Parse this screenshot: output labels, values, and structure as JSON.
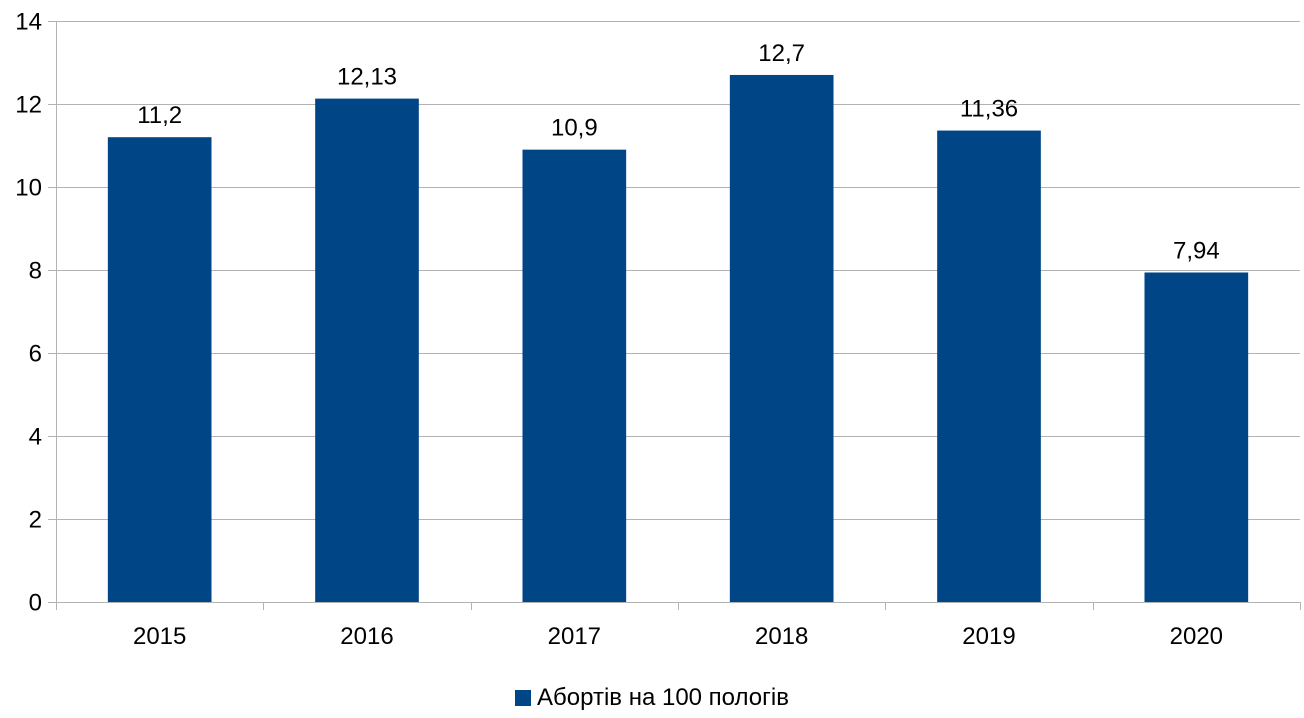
{
  "chart_data": {
    "type": "bar",
    "categories": [
      "2015",
      "2016",
      "2017",
      "2018",
      "2019",
      "2020"
    ],
    "series": [
      {
        "name": "Абортів на 100 пологів",
        "values": [
          11.2,
          12.13,
          10.9,
          12.7,
          11.36,
          7.94
        ],
        "value_labels": [
          "11,2",
          "12,13",
          "10,9",
          "12,7",
          "11,36",
          "7,94"
        ]
      }
    ],
    "ylim": [
      0,
      14
    ],
    "yticks": [
      0,
      2,
      4,
      6,
      8,
      10,
      12,
      14
    ],
    "grid": true,
    "legend_position": "bottom",
    "colors": {
      "bar": "#004586",
      "grid": "#b3b3b3",
      "axis": "#b3b3b3"
    }
  }
}
